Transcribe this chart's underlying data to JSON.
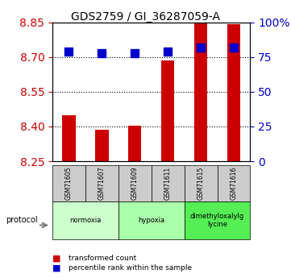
{
  "title": "GDS2759 / GI_36287059-A",
  "samples": [
    "GSM71605",
    "GSM71607",
    "GSM71609",
    "GSM71611",
    "GSM71615",
    "GSM71616"
  ],
  "red_values": [
    8.45,
    8.385,
    8.405,
    8.685,
    8.845,
    8.84
  ],
  "blue_values": [
    79,
    78,
    78,
    79,
    82,
    82
  ],
  "y_min": 8.25,
  "y_max": 8.85,
  "y_ticks": [
    8.25,
    8.4,
    8.55,
    8.7,
    8.85
  ],
  "y_right_ticks": [
    0,
    25,
    50,
    75,
    100
  ],
  "protocols": [
    {
      "label": "normoxia",
      "start": 0,
      "end": 2,
      "color": "#ccffcc"
    },
    {
      "label": "hypoxia",
      "start": 2,
      "end": 4,
      "color": "#aaffaa"
    },
    {
      "label": "dimethyloxalylg\nlycine",
      "start": 4,
      "end": 6,
      "color": "#55ee55"
    }
  ],
  "bar_color": "#cc0000",
  "dot_color": "#0000cc",
  "bar_width": 0.4,
  "dot_size": 60,
  "legend_labels": [
    "transformed count",
    "percentile rank within the sample"
  ],
  "sample_box_color": "#cccccc",
  "left_tick_color": "#cc0000",
  "right_tick_color": "#0000cc"
}
